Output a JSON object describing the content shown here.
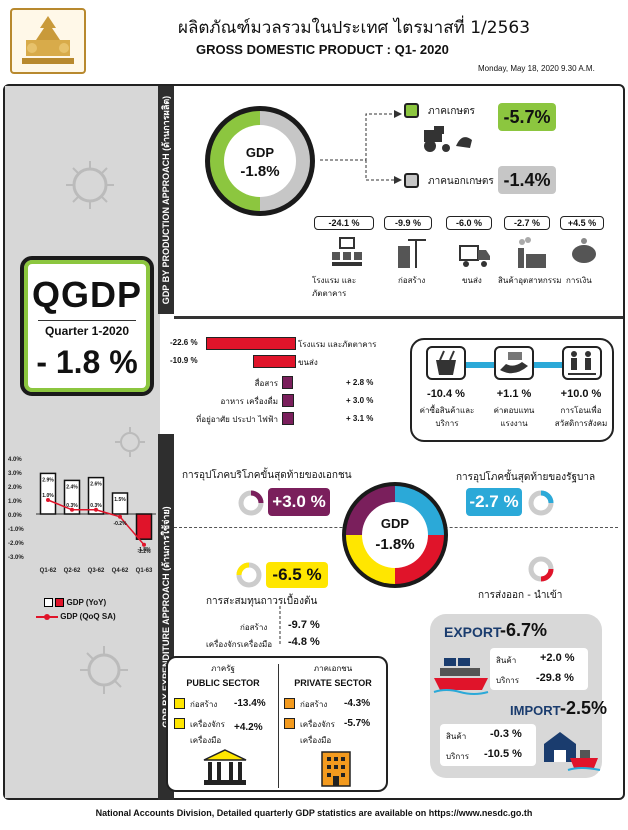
{
  "header": {
    "title_th": "ผลิตภัณฑ์มวลรวมในประเทศ ไตรมาสที่ 1/2563",
    "title_en": "GROSS DOMESTIC PRODUCT : Q1- 2020",
    "timestamp": "Monday, May 18, 2020 9.30 A.M."
  },
  "sidebar": {
    "label": "QGDP",
    "quarter": "Quarter 1-2020",
    "value": "- 1.8 %"
  },
  "production": {
    "vertical_label": "GDP BY PRODUCTION APPROACH (ด้านการผลิต)",
    "gdp_label": "GDP",
    "gdp_value": "-1.8%",
    "agri_label": "ภาคเกษตร",
    "agri_value": "-5.7%",
    "nonagri_label": "ภาคนอกเกษตร",
    "nonagri_value": "-1.4%",
    "sectors": [
      {
        "value": "-24.1 %",
        "label": "โรงแรม และภัตตาคาร",
        "icon": "hotel-icon"
      },
      {
        "value": "-9.9 %",
        "label": "ก่อสร้าง",
        "icon": "construction-icon"
      },
      {
        "value": "-6.0 %",
        "label": "ขนส่ง",
        "icon": "truck-icon"
      },
      {
        "value": "-2.7 %",
        "label": "สินค้าอุตสาหกรรม",
        "icon": "factory-icon"
      },
      {
        "value": "+4.5 %",
        "label": "การเงิน",
        "icon": "piggy-bank-icon"
      }
    ]
  },
  "services": {
    "neg": [
      {
        "value": "-22.6 %",
        "label": "โรงแรม และภัตตาคาร",
        "pct": 22.6
      },
      {
        "value": "-10.9 %",
        "label": "ขนส่ง",
        "pct": 10.9
      }
    ],
    "pos": [
      {
        "value": "+ 2.8 %",
        "label": "สื่อสาร",
        "pct": 2.8
      },
      {
        "value": "+ 3.0 %",
        "label": "อาหาร เครื่องดื่ม",
        "pct": 3.0
      },
      {
        "value": "+ 3.1 %",
        "label": "ที่อยู่อาศัย ประปา ไฟฟ้า",
        "pct": 3.1
      }
    ]
  },
  "household": {
    "items": [
      {
        "value": "-10.4 %",
        "label": "ค่าซื้อสินค้าและบริการ"
      },
      {
        "value": "+1.1 %",
        "label": "ค่าตอบแทนแรงงาน"
      },
      {
        "value": "+10.0 %",
        "label": "การโอนเพื่อสวัสดิการสังคม"
      }
    ]
  },
  "expenditure": {
    "vertical_label": "GDP BY EXPENDITURE APPROACH (ด้านการใช้จ่าย)",
    "private_consumption_label": "การอุปโภคบริโภคขั้นสุดท้ายของเอกชน",
    "private_consumption_value": "+3.0 %",
    "government_label": "การอุปโภคขั้นสุดท้ายของรัฐบาล",
    "government_value": "-2.7 %",
    "gdp_label": "GDP",
    "gdp_value": "-1.8%",
    "investment_value": "-6.5 %",
    "investment_label": "การสะสมทุนถาวรเบื้องต้น",
    "construction_label": "ก่อสร้าง",
    "construction_value": "-9.7 %",
    "machinery_label": "เครื่องจักรเครื่องมือ",
    "machinery_value": "-4.8 %",
    "net_export_label": "การส่งออก - นำเข้า"
  },
  "public_sector": {
    "title_th": "ภาครัฐ",
    "title_en": "PUBLIC SECTOR",
    "construction_label": "ก่อสร้าง",
    "construction_value": "-13.4%",
    "machinery_label": "เครื่องจักร",
    "machinery_label2": "เครื่องมือ",
    "machinery_value": "+4.2%"
  },
  "private_sector": {
    "title_th": "ภาคเอกชน",
    "title_en": "PRIVATE SECTOR",
    "construction_label": "ก่อสร้าง",
    "construction_value": "-4.3%",
    "machinery_label": "เครื่องจักร",
    "machinery_label2": "เครื่องมือ",
    "machinery_value": "-5.7%"
  },
  "trade": {
    "export_label": "EXPORT",
    "export_value": "-6.7%",
    "export_goods_label": "สินค้า",
    "export_goods_value": "+2.0 %",
    "export_services_label": "บริการ",
    "export_services_value": "-29.8 %",
    "import_label": "IMPORT",
    "import_value": "-2.5%",
    "import_goods_label": "สินค้า",
    "import_goods_value": "-0.3 %",
    "import_services_label": "บริการ",
    "import_services_value": "-10.5 %"
  },
  "chart_data": {
    "type": "bar",
    "categories": [
      "Q1-62",
      "Q2-62",
      "Q3-62",
      "Q4-62",
      "Q1-63"
    ],
    "series": [
      {
        "name": "GDP (YoY)",
        "values": [
          2.9,
          2.4,
          2.6,
          1.5,
          -1.8
        ],
        "labels": [
          "2.9%",
          "2.4%",
          "2.6%",
          "1.5%",
          "-1.8%"
        ]
      },
      {
        "name": "GDP (QoQ SA)",
        "values": [
          1.0,
          0.3,
          0.3,
          -0.2,
          -2.2
        ],
        "labels": [
          "1.0%",
          "0.3%",
          "0.3%",
          "-0.2%",
          "-2.2%"
        ]
      }
    ],
    "yticks": [
      "4.0%",
      "3.0%",
      "2.0%",
      "1.0%",
      "0.0%",
      "-1.0%",
      "-2.0%",
      "-3.0%"
    ],
    "ylim": [
      -3,
      4
    ]
  },
  "footer": {
    "text": "National Accounts Division, Detailed quarterly GDP statistics are available on https://www.nesdc.go.th"
  },
  "colors": {
    "green": "#8cc63f",
    "red": "#e0142a",
    "purple": "#7a1f5c",
    "yellow": "#ffe600",
    "blue": "#2ba9d8",
    "orange": "#f39a1e"
  }
}
